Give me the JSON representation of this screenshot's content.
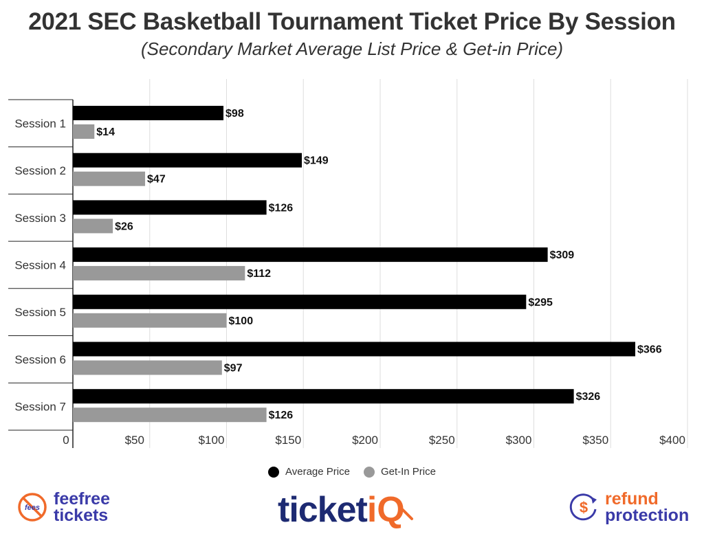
{
  "header": {
    "title": "2021 SEC Basketball Tournament Ticket Price By Session",
    "subtitle": "(Secondary Market Average List Price & Get-in Price)"
  },
  "chart_data": {
    "type": "bar",
    "orientation": "horizontal",
    "categories": [
      "Session 1",
      "Session 2",
      "Session 3",
      "Session 4",
      "Session 5",
      "Session 6",
      "Session 7"
    ],
    "series": [
      {
        "name": "Average Price",
        "color": "#000000",
        "values": [
          98,
          149,
          126,
          309,
          295,
          366,
          326
        ],
        "labels": [
          "$98",
          "$149",
          "$126",
          "$309",
          "$295",
          "$366",
          "$326"
        ]
      },
      {
        "name": "Get-In Price",
        "color": "#999999",
        "values": [
          14,
          47,
          26,
          112,
          100,
          97,
          126
        ],
        "labels": [
          "$14",
          "$47",
          "$26",
          "$112",
          "$100",
          "$97",
          "$126"
        ]
      }
    ],
    "xlim": [
      0,
      400
    ],
    "xticks": [
      0,
      50,
      100,
      150,
      200,
      250,
      300,
      350,
      400
    ],
    "xtick_labels": [
      "0",
      "$50",
      "$100",
      "$150",
      "$200",
      "$250",
      "$300",
      "$350",
      "$400"
    ],
    "grid": "vertical",
    "legend_position": "bottom"
  },
  "legend": {
    "items": [
      {
        "label": "Average Price",
        "color": "#000000"
      },
      {
        "label": "Get-In Price",
        "color": "#999999"
      }
    ]
  },
  "logos": {
    "left": {
      "badge_text": "fees",
      "line1": "feefree",
      "line2": "tickets",
      "icon": "no-fees-icon"
    },
    "center": {
      "text_main": "ticket",
      "text_accent": "iQ",
      "icon": "magnifier-icon"
    },
    "right": {
      "line1": "refund",
      "line2": "protection",
      "icon": "dollar-refund-icon"
    }
  },
  "colors": {
    "brand_navy": "#1d2a72",
    "brand_orange": "#f06a2a",
    "brand_purple": "#3a3aa8"
  }
}
